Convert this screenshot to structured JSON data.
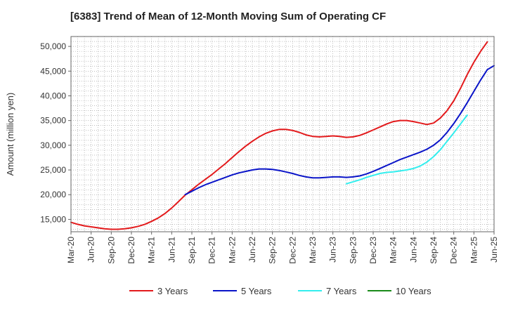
{
  "chart_data": {
    "type": "line",
    "title": "[6383]  Trend of Mean of 12-Month Moving Sum of Operating CF",
    "xlabel": "",
    "ylabel": "Amount (million yen)",
    "ylim": [
      12500,
      52000
    ],
    "yticks": [
      15000,
      20000,
      25000,
      30000,
      35000,
      40000,
      45000,
      50000
    ],
    "ytick_labels": [
      "15,000",
      "20,000",
      "25,000",
      "30,000",
      "35,000",
      "40,000",
      "45,000",
      "50,000"
    ],
    "x_start": "Mar-20",
    "x_end": "Jun-25",
    "xtick_labels": [
      "Mar-20",
      "Jun-20",
      "Sep-20",
      "Dec-20",
      "Mar-21",
      "Jun-21",
      "Sep-21",
      "Dec-21",
      "Mar-22",
      "Jun-22",
      "Sep-22",
      "Dec-22",
      "Mar-23",
      "Jun-23",
      "Sep-23",
      "Dec-23",
      "Mar-24",
      "Jun-24",
      "Sep-24",
      "Dec-24",
      "Mar-25",
      "Jun-25"
    ],
    "grid": true,
    "legend_position": "bottom",
    "series": [
      {
        "name": "3 Years",
        "color": "#e31a1c",
        "start": "Mar-20",
        "values": [
          14400,
          14000,
          13700,
          13500,
          13300,
          13100,
          13000,
          13000,
          13100,
          13300,
          13600,
          14000,
          14600,
          15300,
          16200,
          17300,
          18600,
          19900,
          21000,
          22100,
          23100,
          24100,
          25200,
          26300,
          27500,
          28700,
          29800,
          30800,
          31700,
          32400,
          32900,
          33200,
          33200,
          33000,
          32600,
          32100,
          31800,
          31700,
          31800,
          31900,
          31800,
          31600,
          31700,
          32000,
          32500,
          33100,
          33700,
          34300,
          34800,
          35000,
          35000,
          34800,
          34500,
          34200,
          34500,
          35500,
          37000,
          39000,
          41500,
          44300,
          46800,
          49000,
          50900
        ]
      },
      {
        "name": "5 Years",
        "color": "#0a14c8",
        "start": "Aug-21",
        "values": [
          20000,
          20700,
          21400,
          22000,
          22500,
          23000,
          23500,
          24000,
          24400,
          24700,
          25000,
          25200,
          25200,
          25100,
          24900,
          24600,
          24300,
          23900,
          23600,
          23400,
          23400,
          23500,
          23600,
          23600,
          23500,
          23600,
          23800,
          24200,
          24700,
          25300,
          25900,
          26500,
          27100,
          27600,
          28100,
          28600,
          29200,
          30000,
          31100,
          32600,
          34400,
          36400,
          38600,
          40900,
          43200,
          45300,
          46100
        ]
      },
      {
        "name": "7 Years",
        "color": "#33eeee",
        "start": "Aug-23",
        "values": [
          22200,
          22600,
          23000,
          23500,
          23900,
          24300,
          24500,
          24600,
          24800,
          25000,
          25300,
          25800,
          26600,
          27700,
          29100,
          30800,
          32500,
          34300,
          36100
        ]
      },
      {
        "name": "10 Years",
        "color": "#1a8a1a",
        "start": "",
        "values": []
      }
    ]
  }
}
